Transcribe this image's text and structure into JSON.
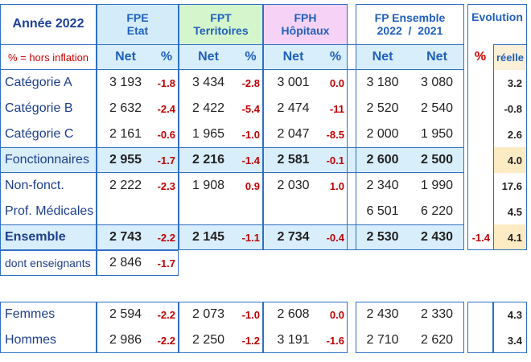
{
  "header": {
    "year": "Année 2022",
    "note": "% = hors inflation"
  },
  "groups": [
    {
      "title": "FPE",
      "subtitle": "Etat"
    },
    {
      "title": "FPT",
      "subtitle": "Territoires"
    },
    {
      "title": "FPH",
      "subtitle": "Hôpitaux"
    },
    {
      "title": "FP Ensemble",
      "subtitle": "2022  /  2021"
    },
    {
      "title": "Evolution"
    }
  ],
  "column_headers": [
    "Net",
    "%",
    "Net",
    "%",
    "Net",
    "%",
    "Net",
    "Net",
    "%",
    "réelle"
  ],
  "rows": [
    {
      "label": "Catégorie A",
      "cells": [
        "3 193",
        "-1.8",
        "3 434",
        "-2.8",
        "3 001",
        "0.0",
        "3 180",
        "3 080",
        null,
        "3.2"
      ]
    },
    {
      "label": "Catégorie B",
      "cells": [
        "2 632",
        "-2.4",
        "2 422",
        "-5.4",
        "2 474",
        "-11",
        "2 520",
        "2 540",
        null,
        "-0.8"
      ]
    },
    {
      "label": "Catégorie C",
      "cells": [
        "2 161",
        "-0.6",
        "1 965",
        "-1.0",
        "2 047",
        "-8.5",
        "2 000",
        "1 950",
        null,
        "2.6"
      ]
    },
    {
      "label": "Fonctionnaires",
      "cells": [
        "2 955",
        "-1.7",
        "2 216",
        "-1.4",
        "2 581",
        "-0.1",
        "2 600",
        "2 500",
        null,
        "4.0"
      ]
    },
    {
      "label": "Non-fonct.",
      "cells": [
        "2 222",
        "-2.3",
        "1 908",
        "0.9",
        "2 030",
        "1.0",
        "2 340",
        "1 990",
        null,
        "17.6"
      ]
    },
    {
      "label": "Prof. Médicales",
      "cells": [
        null,
        null,
        null,
        null,
        null,
        null,
        "6 501",
        "6 220",
        null,
        "4.5"
      ]
    },
    {
      "label": "Ensemble",
      "cells": [
        "2 743",
        "-2.2",
        "2 145",
        "-1.1",
        "2 734",
        "-0.4",
        "2 530",
        "2 430",
        "-1.4",
        "4.1"
      ]
    },
    {
      "label": "dont enseignants",
      "cells": [
        "2 846",
        "-1.7"
      ]
    },
    {
      "label": "Femmes",
      "cells": [
        "2 594",
        "-2.2",
        "2 073",
        "-1.0",
        "2 608",
        "0.0",
        "2 430",
        "2 330",
        null,
        "4.3"
      ]
    },
    {
      "label": "Hommes",
      "cells": [
        "2 986",
        "-2.2",
        "2 250",
        "-1.2",
        "3 191",
        "-1.6",
        "2 710",
        "2 620",
        null,
        "3.4"
      ]
    }
  ]
}
